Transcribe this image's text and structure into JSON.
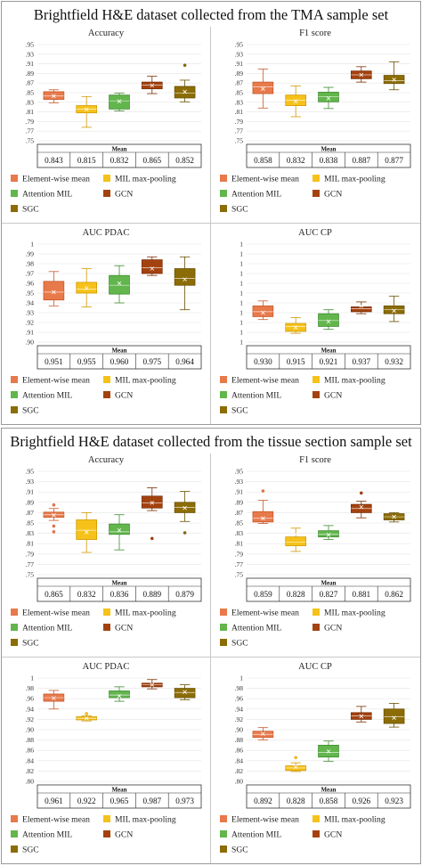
{
  "sections": [
    {
      "title": "Brightfield H&E dataset collected from the TMA sample set",
      "panels": [
        {
          "title": "Accuracy",
          "ymin": 0.75,
          "ymax": 0.95,
          "step": 0.02,
          "decimals": 2,
          "means": [
            "0.843",
            "0.815",
            "0.832",
            "0.865",
            "0.852"
          ],
          "boxes": [
            {
              "wlo": 0.829,
              "q1": 0.836,
              "med": 0.843,
              "q3": 0.852,
              "whi": 0.856,
              "mean": 0.843,
              "out": []
            },
            {
              "wlo": 0.778,
              "q1": 0.808,
              "med": 0.816,
              "q3": 0.823,
              "whi": 0.842,
              "mean": 0.815,
              "out": []
            },
            {
              "wlo": 0.812,
              "q1": 0.816,
              "med": 0.833,
              "q3": 0.845,
              "whi": 0.849,
              "mean": 0.832,
              "out": []
            },
            {
              "wlo": 0.848,
              "q1": 0.858,
              "med": 0.866,
              "q3": 0.872,
              "whi": 0.884,
              "mean": 0.865,
              "out": []
            },
            {
              "wlo": 0.831,
              "q1": 0.839,
              "med": 0.849,
              "q3": 0.863,
              "whi": 0.876,
              "mean": 0.852,
              "out": [
                0.907
              ]
            }
          ]
        },
        {
          "title": "F1 score",
          "ymin": 0.75,
          "ymax": 0.95,
          "step": 0.02,
          "decimals": 2,
          "means": [
            "0.858",
            "0.832",
            "0.838",
            "0.887",
            "0.877"
          ],
          "boxes": [
            {
              "wlo": 0.818,
              "q1": 0.848,
              "med": 0.862,
              "q3": 0.872,
              "whi": 0.899,
              "mean": 0.858,
              "out": []
            },
            {
              "wlo": 0.8,
              "q1": 0.823,
              "med": 0.834,
              "q3": 0.845,
              "whi": 0.864,
              "mean": 0.832,
              "out": []
            },
            {
              "wlo": 0.817,
              "q1": 0.831,
              "med": 0.842,
              "q3": 0.851,
              "whi": 0.861,
              "mean": 0.838,
              "out": []
            },
            {
              "wlo": 0.872,
              "q1": 0.879,
              "med": 0.887,
              "q3": 0.895,
              "whi": 0.904,
              "mean": 0.887,
              "out": []
            },
            {
              "wlo": 0.856,
              "q1": 0.869,
              "med": 0.875,
              "q3": 0.886,
              "whi": 0.914,
              "mean": 0.877,
              "out": []
            }
          ]
        },
        {
          "title": "AUC PDAC",
          "ymin": 0.9,
          "ymax": 1.0,
          "step": 0.01,
          "decimals": 2,
          "means": [
            "0.951",
            "0.955",
            "0.960",
            "0.975",
            "0.964"
          ],
          "boxes": [
            {
              "wlo": 0.937,
              "q1": 0.943,
              "med": 0.951,
              "q3": 0.962,
              "whi": 0.972,
              "mean": 0.951,
              "out": []
            },
            {
              "wlo": 0.936,
              "q1": 0.95,
              "med": 0.954,
              "q3": 0.961,
              "whi": 0.975,
              "mean": 0.955,
              "out": []
            },
            {
              "wlo": 0.94,
              "q1": 0.949,
              "med": 0.958,
              "q3": 0.968,
              "whi": 0.978,
              "mean": 0.96,
              "out": []
            },
            {
              "wlo": 0.968,
              "q1": 0.97,
              "med": 0.976,
              "q3": 0.984,
              "whi": 0.987,
              "mean": 0.975,
              "out": []
            },
            {
              "wlo": 0.933,
              "q1": 0.958,
              "med": 0.965,
              "q3": 0.975,
              "whi": 0.987,
              "mean": 0.964,
              "out": []
            }
          ]
        },
        {
          "title": "AUC CP",
          "ymin": 0.9,
          "ymax": 1.0,
          "step": 0.01,
          "decimals": 0,
          "means": [
            "0.930",
            "0.915",
            "0.921",
            "0.937",
            "0.932"
          ],
          "boxes": [
            {
              "wlo": 0.923,
              "q1": 0.926,
              "med": 0.931,
              "q3": 0.937,
              "whi": 0.942,
              "mean": 0.93,
              "out": []
            },
            {
              "wlo": 0.909,
              "q1": 0.911,
              "med": 0.916,
              "q3": 0.919,
              "whi": 0.925,
              "mean": 0.915,
              "out": []
            },
            {
              "wlo": 0.913,
              "q1": 0.916,
              "med": 0.922,
              "q3": 0.929,
              "whi": 0.933,
              "mean": 0.921,
              "out": []
            },
            {
              "wlo": 0.929,
              "q1": 0.931,
              "med": 0.934,
              "q3": 0.936,
              "whi": 0.941,
              "mean": 0.937,
              "out": []
            },
            {
              "wlo": 0.921,
              "q1": 0.929,
              "med": 0.933,
              "q3": 0.937,
              "whi": 0.947,
              "mean": 0.932,
              "out": []
            }
          ]
        }
      ]
    },
    {
      "title": "Brightfield H&E dataset collected from the tissue section sample set",
      "panels": [
        {
          "title": "Accuracy",
          "ymin": 0.75,
          "ymax": 0.95,
          "step": 0.02,
          "decimals": 2,
          "means": [
            "0.865",
            "0.832",
            "0.836",
            "0.889",
            "0.879"
          ],
          "boxes": [
            {
              "wlo": 0.855,
              "q1": 0.861,
              "med": 0.866,
              "q3": 0.871,
              "whi": 0.878,
              "mean": 0.865,
              "out": [
                0.885,
                0.844,
                0.833
              ]
            },
            {
              "wlo": 0.793,
              "q1": 0.818,
              "med": 0.836,
              "q3": 0.856,
              "whi": 0.87,
              "mean": 0.832,
              "out": []
            },
            {
              "wlo": 0.798,
              "q1": 0.828,
              "med": 0.833,
              "q3": 0.848,
              "whi": 0.866,
              "mean": 0.836,
              "out": []
            },
            {
              "wlo": 0.874,
              "q1": 0.879,
              "med": 0.889,
              "q3": 0.902,
              "whi": 0.918,
              "mean": 0.889,
              "out": [
                0.82
              ]
            },
            {
              "wlo": 0.853,
              "q1": 0.87,
              "med": 0.88,
              "q3": 0.89,
              "whi": 0.911,
              "mean": 0.879,
              "out": [
                0.831
              ]
            }
          ]
        },
        {
          "title": "F1 score",
          "ymin": 0.75,
          "ymax": 0.95,
          "step": 0.02,
          "decimals": 2,
          "means": [
            "0.859",
            "0.828",
            "0.827",
            "0.881",
            "0.862"
          ],
          "boxes": [
            {
              "wlo": 0.849,
              "q1": 0.852,
              "med": 0.859,
              "q3": 0.872,
              "whi": 0.894,
              "mean": 0.859,
              "out": [
                0.912
              ]
            },
            {
              "wlo": 0.795,
              "q1": 0.806,
              "med": 0.813,
              "q3": 0.823,
              "whi": 0.84,
              "mean": 0.828,
              "out": []
            },
            {
              "wlo": 0.818,
              "q1": 0.823,
              "med": 0.828,
              "q3": 0.835,
              "whi": 0.845,
              "mean": 0.827,
              "out": []
            },
            {
              "wlo": 0.86,
              "q1": 0.87,
              "med": 0.878,
              "q3": 0.886,
              "whi": 0.892,
              "mean": 0.881,
              "out": [
                0.908
              ]
            },
            {
              "wlo": 0.852,
              "q1": 0.856,
              "med": 0.862,
              "q3": 0.868,
              "whi": 0.87,
              "mean": 0.862,
              "out": []
            }
          ]
        },
        {
          "title": "AUC PDAC",
          "ymin": 0.8,
          "ymax": 1.0,
          "step": 0.02,
          "decimals": 2,
          "means": [
            "0.961",
            "0.922",
            "0.965",
            "0.987",
            "0.973"
          ],
          "boxes": [
            {
              "wlo": 0.94,
              "q1": 0.955,
              "med": 0.962,
              "q3": 0.969,
              "whi": 0.976,
              "mean": 0.961,
              "out": []
            },
            {
              "wlo": 0.917,
              "q1": 0.919,
              "med": 0.922,
              "q3": 0.925,
              "whi": 0.927,
              "mean": 0.922,
              "out": [
                0.931
              ]
            },
            {
              "wlo": 0.955,
              "q1": 0.962,
              "med": 0.967,
              "q3": 0.975,
              "whi": 0.983,
              "mean": 0.965,
              "out": []
            },
            {
              "wlo": 0.979,
              "q1": 0.983,
              "med": 0.987,
              "q3": 0.99,
              "whi": 0.997,
              "mean": 0.987,
              "out": []
            },
            {
              "wlo": 0.958,
              "q1": 0.962,
              "med": 0.972,
              "q3": 0.98,
              "whi": 0.987,
              "mean": 0.973,
              "out": []
            }
          ]
        },
        {
          "title": "AUC CP",
          "ymin": 0.8,
          "ymax": 1.0,
          "step": 0.02,
          "decimals": 2,
          "means": [
            "0.892",
            "0.828",
            "0.858",
            "0.926",
            "0.923"
          ],
          "boxes": [
            {
              "wlo": 0.88,
              "q1": 0.885,
              "med": 0.891,
              "q3": 0.897,
              "whi": 0.904,
              "mean": 0.892,
              "out": []
            },
            {
              "wlo": 0.819,
              "q1": 0.821,
              "med": 0.826,
              "q3": 0.83,
              "whi": 0.836,
              "mean": 0.828,
              "out": [
                0.846
              ]
            },
            {
              "wlo": 0.839,
              "q1": 0.847,
              "med": 0.856,
              "q3": 0.87,
              "whi": 0.878,
              "mean": 0.858,
              "out": []
            },
            {
              "wlo": 0.915,
              "q1": 0.92,
              "med": 0.927,
              "q3": 0.933,
              "whi": 0.945,
              "mean": 0.926,
              "out": []
            },
            {
              "wlo": 0.905,
              "q1": 0.912,
              "med": 0.925,
              "q3": 0.94,
              "whi": 0.951,
              "mean": 0.923,
              "out": []
            }
          ]
        }
      ]
    }
  ],
  "table_header": "Mean",
  "legend": [
    {
      "name": "Element-wise mean",
      "color": "#e8794a",
      "edge": "#c65a2c"
    },
    {
      "name": "MIL max-pooling",
      "color": "#f6c21a",
      "edge": "#d19a00"
    },
    {
      "name": "Attention MIL",
      "color": "#62b64c",
      "edge": "#3f8c2f"
    },
    {
      "name": "GCN",
      "color": "#a4420f",
      "edge": "#7a2e06"
    },
    {
      "name": "SGC",
      "color": "#8c6c06",
      "edge": "#6a5003"
    }
  ],
  "chart_data": [
    {
      "type": "box",
      "title": "Accuracy",
      "categories": [
        "Element-wise mean",
        "MIL max-pooling",
        "Attention MIL",
        "GCN",
        "SGC"
      ],
      "mean": [
        0.843,
        0.815,
        0.832,
        0.865,
        0.852
      ],
      "ylim": [
        0.75,
        0.95
      ]
    },
    {
      "type": "box",
      "title": "F1 score",
      "categories": [
        "Element-wise mean",
        "MIL max-pooling",
        "Attention MIL",
        "GCN",
        "SGC"
      ],
      "mean": [
        0.858,
        0.832,
        0.838,
        0.887,
        0.877
      ],
      "ylim": [
        0.75,
        0.95
      ]
    },
    {
      "type": "box",
      "title": "AUC PDAC",
      "categories": [
        "Element-wise mean",
        "MIL max-pooling",
        "Attention MIL",
        "GCN",
        "SGC"
      ],
      "mean": [
        0.951,
        0.955,
        0.96,
        0.975,
        0.964
      ],
      "ylim": [
        0.9,
        1.0
      ]
    },
    {
      "type": "box",
      "title": "AUC CP",
      "categories": [
        "Element-wise mean",
        "MIL max-pooling",
        "Attention MIL",
        "GCN",
        "SGC"
      ],
      "mean": [
        0.93,
        0.915,
        0.921,
        0.937,
        0.932
      ],
      "ylim": [
        0.9,
        1.0
      ]
    },
    {
      "type": "box",
      "title": "Accuracy",
      "categories": [
        "Element-wise mean",
        "MIL max-pooling",
        "Attention MIL",
        "GCN",
        "SGC"
      ],
      "mean": [
        0.865,
        0.832,
        0.836,
        0.889,
        0.879
      ],
      "ylim": [
        0.75,
        0.95
      ]
    },
    {
      "type": "box",
      "title": "F1 score",
      "categories": [
        "Element-wise mean",
        "MIL max-pooling",
        "Attention MIL",
        "GCN",
        "SGC"
      ],
      "mean": [
        0.859,
        0.828,
        0.827,
        0.881,
        0.862
      ],
      "ylim": [
        0.75,
        0.95
      ]
    },
    {
      "type": "box",
      "title": "AUC PDAC",
      "categories": [
        "Element-wise mean",
        "MIL max-pooling",
        "Attention MIL",
        "GCN",
        "SGC"
      ],
      "mean": [
        0.961,
        0.922,
        0.965,
        0.987,
        0.973
      ],
      "ylim": [
        0.8,
        1.0
      ]
    },
    {
      "type": "box",
      "title": "AUC CP",
      "categories": [
        "Element-wise mean",
        "MIL max-pooling",
        "Attention MIL",
        "GCN",
        "SGC"
      ],
      "mean": [
        0.892,
        0.828,
        0.858,
        0.926,
        0.923
      ],
      "ylim": [
        0.8,
        1.0
      ]
    }
  ]
}
